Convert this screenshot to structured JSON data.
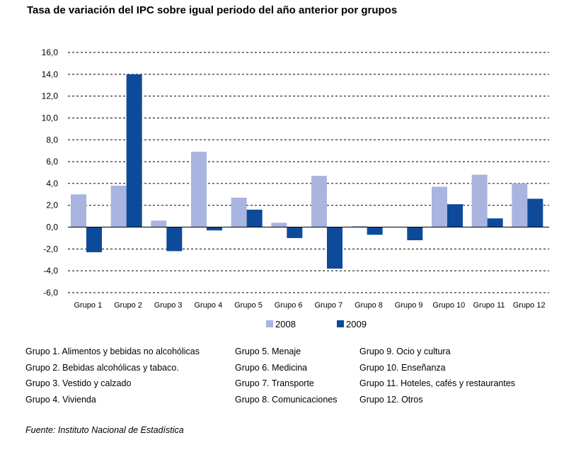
{
  "chart_data": {
    "type": "bar",
    "title": "Tasa de variación del IPC sobre igual periodo del año anterior por grupos",
    "categories": [
      "Grupo 1",
      "Grupo 2",
      "Grupo 3",
      "Grupo 4",
      "Grupo 5",
      "Grupo 6",
      "Grupo 7",
      "Grupo 8",
      "Grupo 9",
      "Grupo 10",
      "Grupo 11",
      "Grupo 12"
    ],
    "series": [
      {
        "name": "2008",
        "color": "#a9b4e0",
        "values": [
          3.0,
          3.8,
          0.6,
          6.9,
          2.7,
          0.4,
          4.7,
          0.1,
          0.0,
          3.7,
          4.8,
          4.0
        ]
      },
      {
        "name": "2009",
        "color": "#0d4a9a",
        "values": [
          -2.3,
          14.0,
          -2.2,
          -0.3,
          1.6,
          -1.0,
          -3.8,
          -0.7,
          -1.2,
          2.1,
          0.8,
          2.6
        ]
      }
    ],
    "ylim": [
      -6,
      16
    ],
    "yticks": [
      "16,0",
      "14,0",
      "12,0",
      "10,0",
      "8,0",
      "6,0",
      "4,0",
      "2,0",
      "0,0",
      "-2,0",
      "-4,0",
      "-6,0"
    ],
    "ytick_values": [
      16,
      14,
      12,
      10,
      8,
      6,
      4,
      2,
      0,
      -2,
      -4,
      -6
    ],
    "grid": "dashed horizontal",
    "legend": "bottom-center"
  },
  "groups_legend": {
    "col1": [
      "Grupo 1. Alimentos y bebidas no alcohólicas",
      "Grupo 2. Bebidas alcohólicas y  tabaco.",
      "Grupo 3. Vestido y calzado",
      "Grupo 4. Vivienda"
    ],
    "col2": [
      "Grupo 5. Menaje",
      "Grupo 6. Medicina",
      "Grupo 7. Transporte",
      "Grupo 8. Comunicaciones"
    ],
    "col3": [
      "Grupo 9. Ocio y cultura",
      "Grupo 10. Enseñanza",
      "Grupo 11. Hoteles, cafés y restaurantes",
      "Grupo 12. Otros"
    ]
  },
  "source": "Fuente: Instituto Nacional de Estadística"
}
